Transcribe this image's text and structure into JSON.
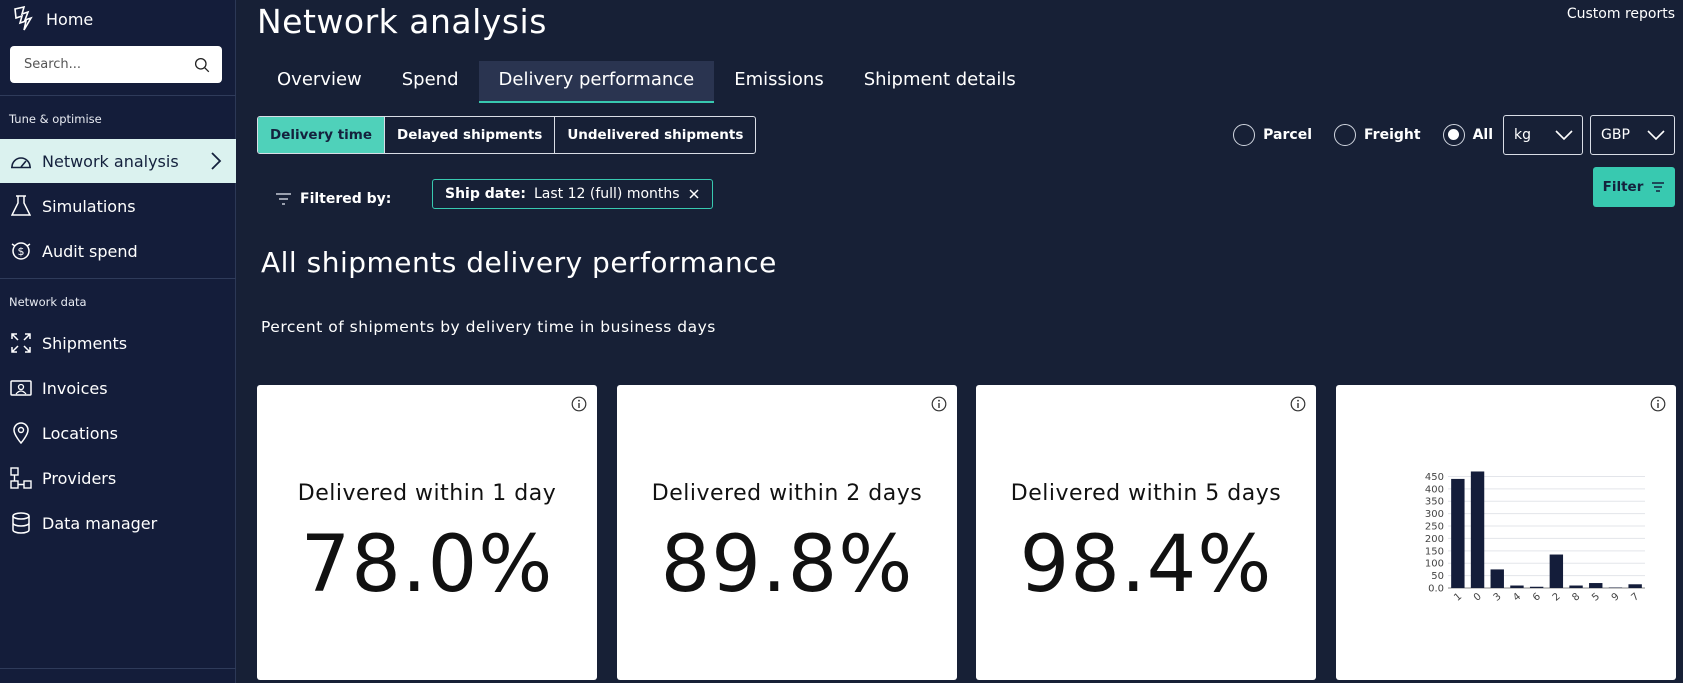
{
  "sidebar": {
    "home_label": "Home",
    "search_placeholder": "Search...",
    "section_tune": "Tune & optimise",
    "section_network": "Network data",
    "items_top": [
      {
        "label": "Network analysis",
        "icon": "gauge-icon",
        "active": true
      },
      {
        "label": "Simulations",
        "icon": "flask-icon"
      },
      {
        "label": "Audit spend",
        "icon": "audit-icon"
      }
    ],
    "items_bottom": [
      {
        "label": "Shipments",
        "icon": "expand-icon"
      },
      {
        "label": "Invoices",
        "icon": "invoice-icon"
      },
      {
        "label": "Locations",
        "icon": "location-pin-icon"
      },
      {
        "label": "Providers",
        "icon": "providers-icon"
      },
      {
        "label": "Data manager",
        "icon": "database-icon"
      }
    ]
  },
  "header": {
    "title": "Network analysis",
    "custom_reports": "Custom reports"
  },
  "tabs": [
    "Overview",
    "Spend",
    "Delivery performance",
    "Emissions",
    "Shipment details"
  ],
  "active_tab": "Delivery performance",
  "segments": [
    "Delivery time",
    "Delayed shipments",
    "Undelivered shipments"
  ],
  "active_segment": "Delivery time",
  "radios": [
    {
      "label": "Parcel",
      "selected": false
    },
    {
      "label": "Freight",
      "selected": false
    },
    {
      "label": "All",
      "selected": true
    }
  ],
  "unit_select": "kg",
  "currency_select": "GBP",
  "filter_button": "Filter",
  "filtered_by": "Filtered by:",
  "chip": {
    "key": "Ship date:",
    "value": "Last 12 (full) months"
  },
  "section_title": "All shipments delivery performance",
  "section_subtitle": "Percent of shipments by delivery time in business days",
  "cards": [
    {
      "label": "Delivered within 1 day",
      "value": "78.0%"
    },
    {
      "label": "Delivered within 2 days",
      "value": "89.8%"
    },
    {
      "label": "Delivered within 5 days",
      "value": "98.4%"
    }
  ],
  "chart_data": {
    "type": "bar",
    "categories": [
      "1",
      "0",
      "3",
      "4",
      "6",
      "2",
      "8",
      "5",
      "9",
      "7"
    ],
    "values": [
      440,
      470,
      75,
      10,
      5,
      135,
      10,
      20,
      2,
      15
    ],
    "y_ticks": [
      "0.0",
      "50",
      "100",
      "150",
      "200",
      "250",
      "300",
      "350",
      "400",
      "450"
    ],
    "ylim": [
      0,
      480
    ],
    "bar_color": "#141d3a",
    "grid": true
  },
  "colors": {
    "accent": "#38c9b0",
    "background": "#172036",
    "sidebar": "#141d3a"
  }
}
